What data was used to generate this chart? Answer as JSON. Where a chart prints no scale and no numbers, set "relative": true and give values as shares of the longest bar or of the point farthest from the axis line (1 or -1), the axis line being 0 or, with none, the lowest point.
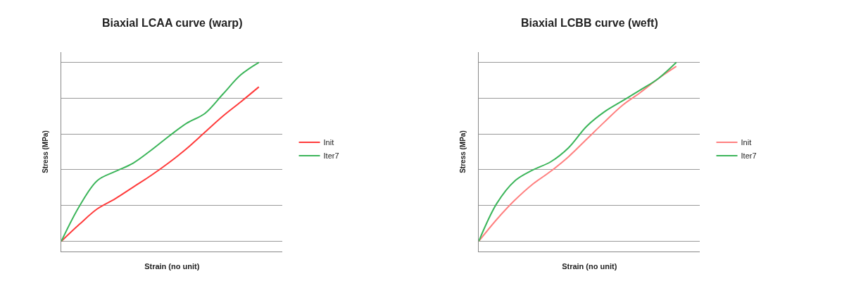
{
  "chart_data": [
    {
      "type": "line",
      "title": "Biaxial LCAA curve (warp)",
      "xlabel": "Strain (no unit)",
      "ylabel": "Stress (MPa)",
      "relative": true,
      "grid": "y",
      "legend": "right",
      "marker": "none",
      "categories": [
        null,
        null,
        null,
        null,
        null,
        null,
        null,
        null,
        null,
        null,
        null,
        null
      ],
      "series": [
        {
          "name": "Init",
          "color": "#ff3b3b",
          "values": [
            0,
            0.094,
            0.181,
            0.238,
            0.303,
            0.368,
            0.44,
            0.52,
            0.61,
            0.7,
            0.78,
            0.863
          ]
        },
        {
          "name": "Iter7",
          "color": "#3cb55a",
          "values": [
            0,
            0.195,
            0.339,
            0.39,
            0.437,
            0.509,
            0.588,
            0.661,
            0.715,
            0.823,
            0.931,
            1
          ]
        }
      ]
    },
    {
      "type": "line",
      "title": "Biaxial LCBB curve (weft)",
      "xlabel": "Strain (no unit)",
      "ylabel": "Stress (MPa)",
      "relative": true,
      "grid": "y",
      "legend": "right",
      "marker": "none",
      "categories": [
        null,
        null,
        null,
        null,
        null,
        null,
        null,
        null,
        null,
        null,
        null,
        null
      ],
      "series": [
        {
          "name": "Init",
          "color": "#ff8080",
          "values": [
            0,
            0.122,
            0.229,
            0.319,
            0.391,
            0.473,
            0.57,
            0.667,
            0.76,
            0.832,
            0.91,
            0.978
          ]
        },
        {
          "name": "Iter7",
          "color": "#3cb55a",
          "values": [
            0,
            0.211,
            0.337,
            0.398,
            0.444,
            0.523,
            0.642,
            0.724,
            0.785,
            0.846,
            0.91,
            1
          ]
        }
      ]
    }
  ]
}
